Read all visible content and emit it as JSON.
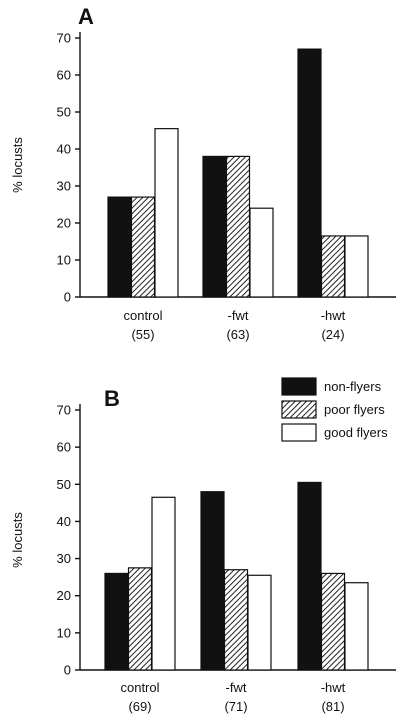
{
  "colors": {
    "non_flyers": "#111111",
    "poor_flyers": "hatch",
    "good_flyers": "#ffffff"
  },
  "legend": {
    "position": "top-right of panel B",
    "items": [
      {
        "key": "non_flyers",
        "label": "non-flyers"
      },
      {
        "key": "poor_flyers",
        "label": "poor flyers"
      },
      {
        "key": "good_flyers",
        "label": "good flyers"
      }
    ]
  },
  "chart_data": [
    {
      "panel": "A",
      "type": "bar",
      "ylabel": "% locusts",
      "ylim": [
        0,
        70
      ],
      "yticks": [
        0,
        10,
        20,
        30,
        40,
        50,
        60,
        70
      ],
      "categories": [
        "control",
        "-fwt",
        "-hwt"
      ],
      "sample_sizes": [
        "(55)",
        "(63)",
        "(24)"
      ],
      "series": [
        {
          "name": "non-flyers",
          "key": "non_flyers",
          "values": [
            27,
            38,
            67
          ]
        },
        {
          "name": "poor flyers",
          "key": "poor_flyers",
          "values": [
            27,
            38,
            16.5
          ]
        },
        {
          "name": "good flyers",
          "key": "good_flyers",
          "values": [
            45.5,
            24,
            16.5
          ]
        }
      ]
    },
    {
      "panel": "B",
      "type": "bar",
      "ylabel": "% locusts",
      "ylim": [
        0,
        70
      ],
      "yticks": [
        0,
        10,
        20,
        30,
        40,
        50,
        60,
        70
      ],
      "categories": [
        "control",
        "-fwt",
        "-hwt"
      ],
      "sample_sizes": [
        "(69)",
        "(71)",
        "(81)"
      ],
      "series": [
        {
          "name": "non-flyers",
          "key": "non_flyers",
          "values": [
            26,
            48,
            50.5
          ]
        },
        {
          "name": "poor flyers",
          "key": "poor_flyers",
          "values": [
            27.5,
            27,
            26
          ]
        },
        {
          "name": "good flyers",
          "key": "good_flyers",
          "values": [
            46.5,
            25.5,
            23.5
          ]
        }
      ]
    }
  ]
}
